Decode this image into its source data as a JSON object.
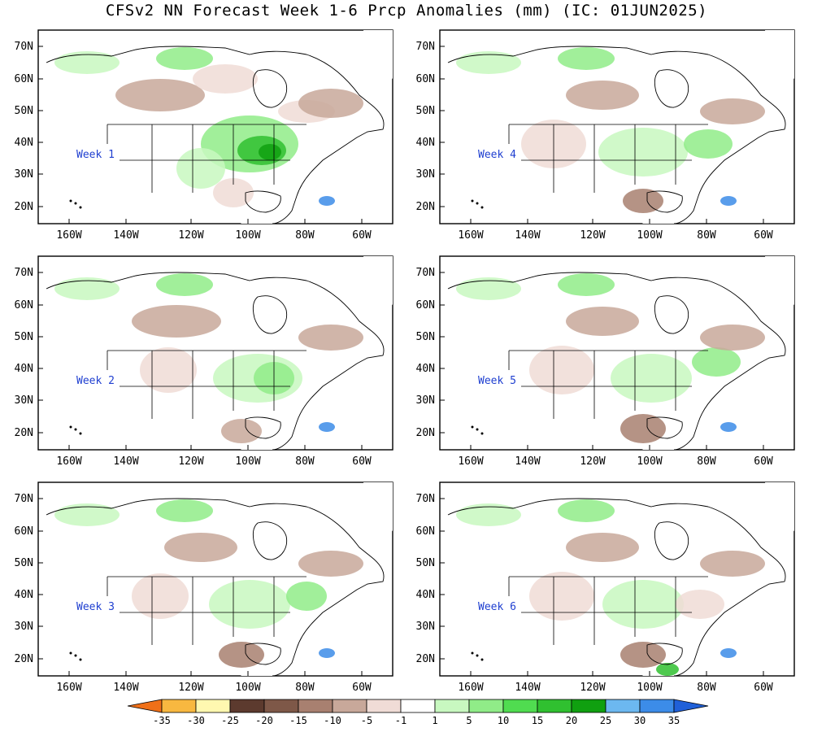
{
  "title": "CFSv2 NN Forecast Week 1-6 Prcp Anomalies (mm) (IC: 01JUN2025)",
  "lat_labels": [
    "70N",
    "60N",
    "50N",
    "40N",
    "30N",
    "20N"
  ],
  "lon_labels": [
    "160W",
    "140W",
    "120W",
    "100W",
    "80W",
    "60W"
  ],
  "panels": [
    {
      "label": "Week 1"
    },
    {
      "label": "Week 4"
    },
    {
      "label": "Week 2"
    },
    {
      "label": "Week 5"
    },
    {
      "label": "Week 3"
    },
    {
      "label": "Week 6"
    }
  ],
  "colorbar": {
    "labels": [
      "-35",
      "-30",
      "-25",
      "-20",
      "-15",
      "-10",
      "-5",
      "-1",
      "1",
      "5",
      "10",
      "15",
      "20",
      "25",
      "30",
      "35"
    ],
    "colors": [
      "#f07018",
      "#f8b840",
      "#fff8b0",
      "#5c3a2e",
      "#7e5848",
      "#a88070",
      "#c8a89a",
      "#f0dcd6",
      "#ffffff",
      "#c8f8c0",
      "#90ec88",
      "#50dc50",
      "#30c030",
      "#10a010",
      "#6cb8f0",
      "#3c8ce8",
      "#2060d8"
    ]
  },
  "colors": {
    "wet_light": "#c8f8c0",
    "wet_mid": "#90ec88",
    "wet_strong": "#30c030",
    "wet_max": "#10a010",
    "dry_light": "#f0dcd6",
    "dry_mid": "#c8a89a",
    "dry_strong": "#a88070",
    "label_blue": "#1f3fd0",
    "lake_blue": "#3c8ce8"
  }
}
